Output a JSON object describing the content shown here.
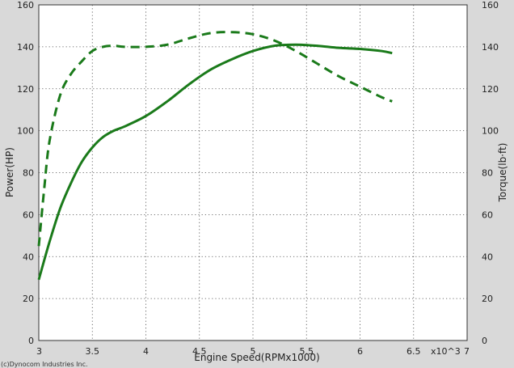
{
  "chart_data": {
    "type": "line",
    "xlabel": "Engine Speed(RPMx1000)",
    "ylabel": "Power(HP)",
    "y2label": "Torque(lb·ft)",
    "x_multiplier_label": "x10^3",
    "xlim": [
      3,
      7
    ],
    "ylim": [
      0,
      160
    ],
    "y2lim": [
      0,
      160
    ],
    "x_ticks": [
      "3",
      "3.5",
      "4",
      "4.5",
      "5",
      "5.5",
      "6",
      "6.5",
      "7"
    ],
    "y_ticks": [
      "0",
      "20",
      "40",
      "60",
      "80",
      "100",
      "120",
      "140",
      "160"
    ],
    "grid": true,
    "line_color": "#1a7a1a",
    "series": [
      {
        "axis": "left",
        "style": "solid",
        "x": [
          3.0,
          3.1,
          3.2,
          3.3,
          3.4,
          3.5,
          3.6,
          3.7,
          3.8,
          4.0,
          4.2,
          4.4,
          4.6,
          4.8,
          5.0,
          5.2,
          5.4,
          5.6,
          5.8,
          6.0,
          6.2,
          6.3
        ],
        "y": [
          29,
          47,
          63,
          75,
          85,
          92,
          97,
          100,
          102,
          107,
          114,
          122,
          129,
          134,
          138,
          140.5,
          141,
          140.5,
          139.5,
          139,
          138,
          137
        ]
      },
      {
        "axis": "right",
        "style": "dashed",
        "x": [
          3.0,
          3.05,
          3.1,
          3.2,
          3.3,
          3.4,
          3.5,
          3.6,
          3.7,
          3.8,
          4.0,
          4.2,
          4.4,
          4.6,
          4.8,
          5.0,
          5.2,
          5.4,
          5.6,
          5.8,
          6.0,
          6.2,
          6.3
        ],
        "y": [
          45,
          72,
          95,
          117,
          127,
          133,
          138,
          140,
          140.5,
          140,
          140,
          141,
          144,
          146.5,
          147,
          146,
          143,
          138,
          132,
          126,
          121,
          116,
          114
        ]
      }
    ]
  },
  "footer": {
    "copyright": "(c)Dynocom Industries Inc."
  }
}
